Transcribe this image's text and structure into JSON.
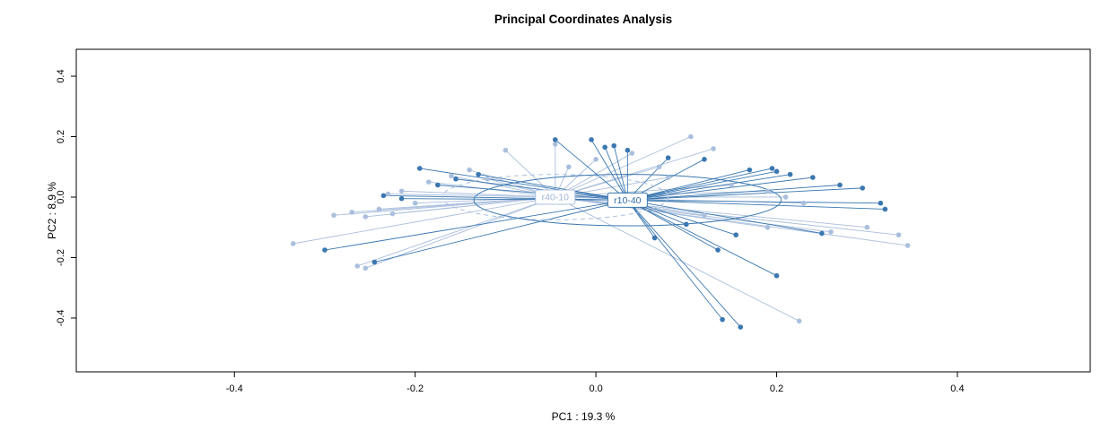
{
  "chart_data": {
    "type": "scatter",
    "title": "Principal Coordinates Analysis",
    "xlabel": "PC1 :  19.3 %",
    "ylabel": "PC2 :  8.9 %",
    "xlim": [
      -0.575,
      0.547
    ],
    "ylim": [
      -0.578,
      0.489
    ],
    "xticks": [
      -0.4,
      -0.2,
      0.0,
      0.2,
      0.4
    ],
    "yticks": [
      -0.4,
      -0.2,
      0.0,
      0.2,
      0.4
    ],
    "grid": false,
    "legend": "none",
    "groups": [
      {
        "name": "r40-10",
        "color": "#aabfdd",
        "label_text_color": "#9fb6d6",
        "centroid": [
          -0.045,
          0.0
        ],
        "ellipse": {
          "rx": 0.125,
          "ry": 0.075,
          "dashed": true
        },
        "points": [
          [
            -0.335,
            -0.154
          ],
          [
            -0.264,
            -0.228
          ],
          [
            -0.29,
            -0.06
          ],
          [
            -0.27,
            -0.05
          ],
          [
            -0.255,
            -0.065
          ],
          [
            -0.24,
            -0.04
          ],
          [
            -0.225,
            -0.055
          ],
          [
            -0.23,
            0.01
          ],
          [
            -0.215,
            0.02
          ],
          [
            -0.2,
            -0.02
          ],
          [
            -0.185,
            0.05
          ],
          [
            -0.16,
            0.07
          ],
          [
            -0.14,
            0.09
          ],
          [
            -0.12,
            0.06
          ],
          [
            -0.1,
            0.155
          ],
          [
            -0.045,
            0.175
          ],
          [
            -0.03,
            0.1
          ],
          [
            0.0,
            0.125
          ],
          [
            0.04,
            0.145
          ],
          [
            0.07,
            0.1
          ],
          [
            0.105,
            0.2
          ],
          [
            0.13,
            0.16
          ],
          [
            0.08,
            0.065
          ],
          [
            0.15,
            0.04
          ],
          [
            0.19,
            0.02
          ],
          [
            0.21,
            0.0
          ],
          [
            0.23,
            -0.02
          ],
          [
            0.26,
            -0.115
          ],
          [
            0.3,
            -0.1
          ],
          [
            0.335,
            -0.125
          ],
          [
            0.345,
            -0.16
          ],
          [
            0.225,
            -0.41
          ],
          [
            -0.255,
            -0.235
          ],
          [
            0.19,
            -0.1
          ],
          [
            0.12,
            -0.06
          ]
        ]
      },
      {
        "name": "r10-40",
        "color": "#3a77b0",
        "label_text_color": "#2f6da8",
        "centroid": [
          0.035,
          -0.01
        ],
        "ellipse": {
          "rx": 0.17,
          "ry": 0.085,
          "dashed": false
        },
        "points": [
          [
            -0.3,
            -0.175
          ],
          [
            -0.245,
            -0.215
          ],
          [
            -0.235,
            0.005
          ],
          [
            -0.215,
            -0.005
          ],
          [
            -0.195,
            0.095
          ],
          [
            -0.175,
            0.04
          ],
          [
            -0.155,
            0.06
          ],
          [
            -0.13,
            0.075
          ],
          [
            -0.045,
            0.19
          ],
          [
            -0.005,
            0.19
          ],
          [
            0.01,
            0.165
          ],
          [
            0.02,
            0.17
          ],
          [
            0.035,
            0.155
          ],
          [
            0.08,
            0.13
          ],
          [
            0.12,
            0.125
          ],
          [
            0.17,
            0.09
          ],
          [
            0.195,
            0.095
          ],
          [
            0.2,
            0.085
          ],
          [
            0.215,
            0.075
          ],
          [
            0.24,
            0.065
          ],
          [
            0.27,
            0.04
          ],
          [
            0.295,
            0.03
          ],
          [
            0.315,
            -0.02
          ],
          [
            0.32,
            -0.04
          ],
          [
            0.135,
            -0.175
          ],
          [
            0.155,
            -0.125
          ],
          [
            0.14,
            -0.405
          ],
          [
            0.16,
            -0.43
          ],
          [
            0.2,
            -0.26
          ],
          [
            0.25,
            -0.12
          ],
          [
            0.1,
            -0.09
          ],
          [
            0.065,
            -0.135
          ]
        ]
      }
    ]
  }
}
